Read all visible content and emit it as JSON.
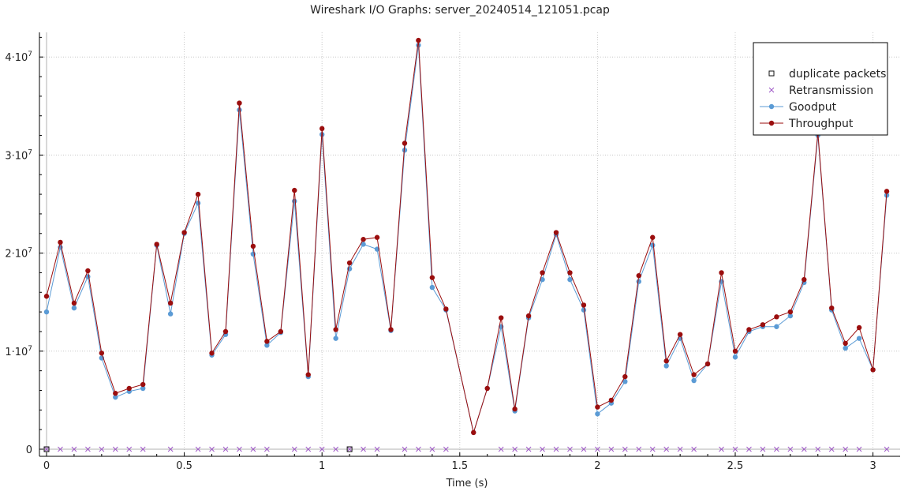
{
  "chart_data": {
    "type": "line",
    "title": "Wireshark I/O Graphs: server_20240514_121051.pcap",
    "xlabel": "Time (s)",
    "ylabel": "",
    "xlim": [
      -0.02,
      3.07
    ],
    "ylim": [
      -500000.0,
      42500000.0
    ],
    "x_ticks": [
      0,
      0.5,
      1,
      1.5,
      2,
      2.5,
      3
    ],
    "x_tick_labels": [
      "0",
      "0.5",
      "1",
      "1.5",
      "2",
      "2.5",
      "3"
    ],
    "y_ticks": [
      0,
      10000000,
      20000000,
      30000000,
      40000000
    ],
    "y_tick_labels": [
      {
        "mantissa": "0",
        "exp": ""
      },
      {
        "mantissa": "1·10",
        "exp": "7"
      },
      {
        "mantissa": "2·10",
        "exp": "7"
      },
      {
        "mantissa": "3·10",
        "exp": "7"
      },
      {
        "mantissa": "4·10",
        "exp": "7"
      }
    ],
    "grid": true,
    "legend_position": "top-right",
    "series": [
      {
        "name": "duplicate packets",
        "kind": "square",
        "color": "#111111",
        "x": [
          0,
          1.1
        ],
        "y": [
          0,
          0
        ]
      },
      {
        "name": "Retransmission",
        "kind": "cross",
        "color": "#a05ac8",
        "x": [
          0,
          0.05,
          0.1,
          0.15,
          0.2,
          0.25,
          0.3,
          0.35,
          0.45,
          0.55,
          0.6,
          0.65,
          0.7,
          0.75,
          0.8,
          0.9,
          0.95,
          1.0,
          1.05,
          1.1,
          1.15,
          1.2,
          1.3,
          1.35,
          1.4,
          1.45,
          1.65,
          1.7,
          1.75,
          1.8,
          1.85,
          1.9,
          1.95,
          2.0,
          2.05,
          2.1,
          2.15,
          2.2,
          2.25,
          2.3,
          2.35,
          2.45,
          2.5,
          2.55,
          2.6,
          2.65,
          2.7,
          2.75,
          2.8,
          2.85,
          2.9,
          2.95,
          3.05
        ],
        "y": [
          0,
          0,
          0,
          0,
          0,
          0,
          0,
          0,
          0,
          0,
          0,
          0,
          0,
          0,
          0,
          0,
          0,
          0,
          0,
          0,
          0,
          0,
          0,
          0,
          0,
          0,
          0,
          0,
          0,
          0,
          0,
          0,
          0,
          0,
          0,
          0,
          0,
          0,
          0,
          0,
          0,
          0,
          0,
          0,
          0,
          0,
          0,
          0,
          0,
          0,
          0,
          0,
          0
        ]
      },
      {
        "name": "Goodput",
        "kind": "line-dot",
        "color": "#5b9bd5",
        "x": [
          0,
          0.05,
          0.1,
          0.15,
          0.2,
          0.25,
          0.3,
          0.35,
          0.4,
          0.45,
          0.5,
          0.55,
          0.6,
          0.65,
          0.7,
          0.75,
          0.8,
          0.85,
          0.9,
          0.95,
          1.0,
          1.05,
          1.1,
          1.15,
          1.2,
          1.25,
          1.3,
          1.35,
          1.4,
          1.45,
          1.55,
          1.6,
          1.65,
          1.7,
          1.75,
          1.8,
          1.85,
          1.9,
          1.95,
          2.0,
          2.05,
          2.1,
          2.15,
          2.2,
          2.25,
          2.3,
          2.35,
          2.4,
          2.45,
          2.5,
          2.55,
          2.6,
          2.65,
          2.7,
          2.75,
          2.8,
          2.85,
          2.9,
          2.95,
          3.0,
          3.05
        ],
        "y": [
          14000000,
          20600000,
          14400000,
          17600000,
          9300000,
          5300000,
          5900000,
          6200000,
          20800000,
          13800000,
          22000000,
          25100000,
          9600000,
          11700000,
          34600000,
          19900000,
          10600000,
          11900000,
          25300000,
          7400000,
          32100000,
          11300000,
          18400000,
          20900000,
          20400000,
          12100000,
          30500000,
          41200000,
          16500000,
          14200000,
          1700000,
          6200000,
          12500000,
          3900000,
          13400000,
          17300000,
          21900000,
          17300000,
          14200000,
          3600000,
          4700000,
          6900000,
          17100000,
          20800000,
          8500000,
          11300000,
          7000000,
          8700000,
          17100000,
          9400000,
          12000000,
          12500000,
          12500000,
          13600000,
          17000000,
          32000000,
          14200000,
          10300000,
          11300000,
          8100000,
          25900000
        ]
      },
      {
        "name": "Throughput",
        "kind": "line-dot",
        "color": "#9b0e0e",
        "x": [
          0,
          0.05,
          0.1,
          0.15,
          0.2,
          0.25,
          0.3,
          0.35,
          0.4,
          0.45,
          0.5,
          0.55,
          0.6,
          0.65,
          0.7,
          0.75,
          0.8,
          0.85,
          0.9,
          0.95,
          1.0,
          1.05,
          1.1,
          1.15,
          1.2,
          1.25,
          1.3,
          1.35,
          1.4,
          1.45,
          1.55,
          1.6,
          1.65,
          1.7,
          1.75,
          1.8,
          1.85,
          1.9,
          1.95,
          2.0,
          2.05,
          2.1,
          2.15,
          2.2,
          2.25,
          2.3,
          2.35,
          2.4,
          2.45,
          2.5,
          2.55,
          2.6,
          2.65,
          2.7,
          2.75,
          2.8,
          2.85,
          2.9,
          2.95,
          3.0,
          3.05
        ],
        "y": [
          15600000,
          21100000,
          14900000,
          18200000,
          9800000,
          5700000,
          6200000,
          6600000,
          20900000,
          14900000,
          22100000,
          26000000,
          9800000,
          12000000,
          35300000,
          20700000,
          11000000,
          12000000,
          26400000,
          7600000,
          32700000,
          12200000,
          19000000,
          21400000,
          21600000,
          12200000,
          31200000,
          41700000,
          17500000,
          14300000,
          1700000,
          6200000,
          13400000,
          4100000,
          13600000,
          18000000,
          22100000,
          18000000,
          14700000,
          4300000,
          5000000,
          7400000,
          17700000,
          21600000,
          9000000,
          11700000,
          7600000,
          8700000,
          18000000,
          10000000,
          12200000,
          12700000,
          13500000,
          14000000,
          17300000,
          32300000,
          14400000,
          10800000,
          12400000,
          8100000,
          26300000
        ]
      }
    ]
  }
}
